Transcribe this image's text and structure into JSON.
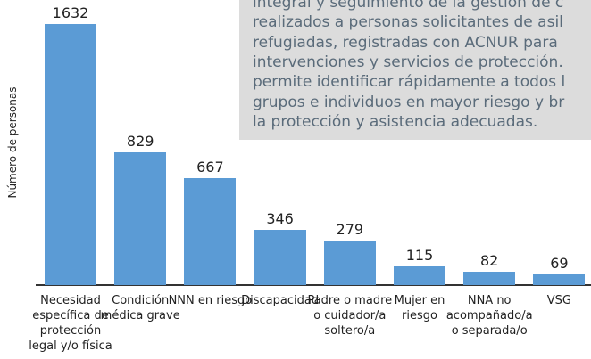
{
  "chart_data": {
    "type": "bar",
    "y_label": "Número de personas",
    "categories": [
      "Necesidad específica de protección legal y/o física",
      "Condición médica grave",
      "NNN en riesgo",
      "Discapacidad",
      "Padre o madre o cuidador/a soltero/a",
      "Mujer en riesgo",
      "NNA no acompañado/a o separada/o",
      "VSG"
    ],
    "values": [
      1632,
      829,
      667,
      346,
      279,
      115,
      82,
      69
    ],
    "color": "#5b9bd5",
    "ylim": [
      0,
      1700
    ]
  },
  "note_box": {
    "lines": [
      "integral y seguimiento de la gestión de c",
      "realizados a personas solicitantes de asil",
      "refugiadas, registradas con ACNUR para",
      "intervenciones y servicios de protección.",
      "permite identificar rápidamente a todos l",
      "grupos e individuos en mayor riesgo y br",
      "la protección y asistencia adecuadas."
    ]
  }
}
